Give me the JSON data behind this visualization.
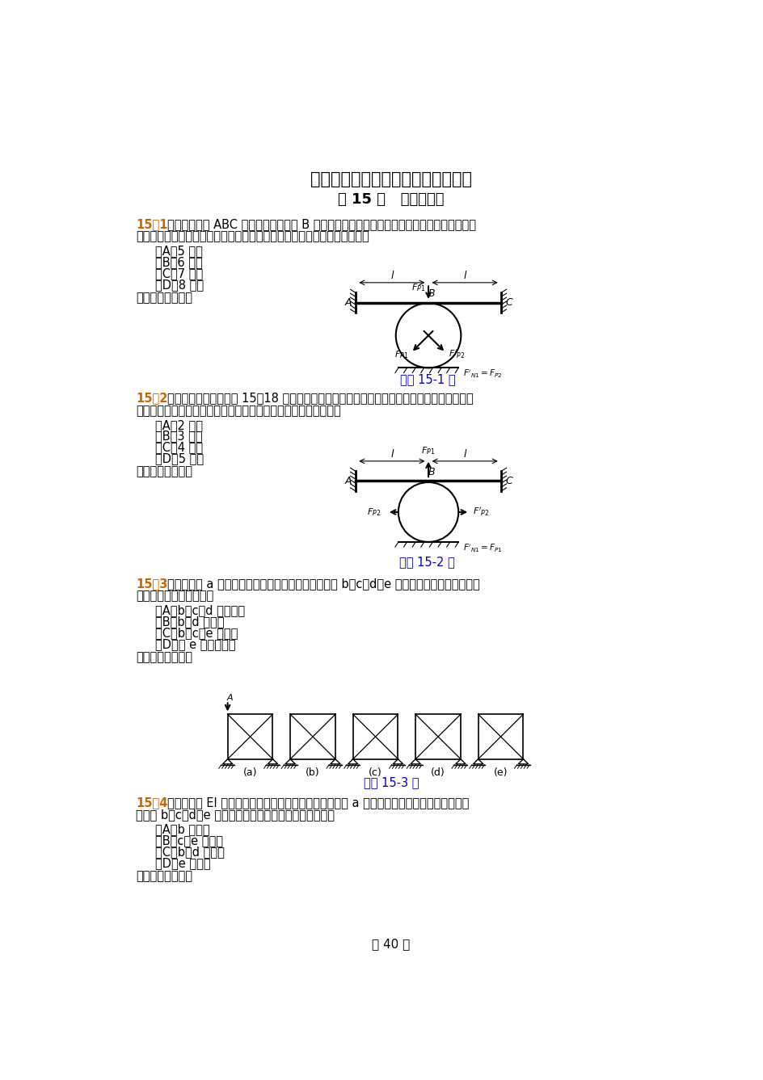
{
  "title": "工程力学（静力学与材料力学）习题",
  "subtitle": "第 15 章   静不定系统",
  "bg_color": "#ffffff",
  "text_color": "#000000",
  "accent_color": "#8B0000",
  "blue_color": "#0000CD",
  "q1_number": "15－1",
  "q1_text1": "图示结构中梁 ABC 的两端固定，在点 B 刚好与圆环接触，圆环下方为光滑刚性平面。在图示",
  "q1_text2": "载荷作用下，多余约束力的个数有如下四种答案，试判断哪一种是正确的。",
  "q1_a": "（A）5 个；",
  "q1_b": "（B）6 个；",
  "q1_c": "（C）7 个；",
  "q1_d": "（D）8 个。",
  "q1_ans": "正确答案是＿＿。",
  "fig1_label": "习题 15-1 图",
  "q2_number": "15－2",
  "q2_text1": "图示结构中，结构与题 15－18 相同，承受载荷情况略有不同。这时利用对称性或反对称性，",
  "q2_text2": "结构的未知约束力个数有如下四种答案，试判断哪一种是正确的。",
  "q2_a": "（A）2 个；",
  "q2_b": "（B）3 个；",
  "q2_c": "（C）4 个；",
  "q2_d": "（D）5 个。",
  "q2_ans": "正确答案是＿＿。",
  "fig2_label": "习题 15-2 图",
  "q3_number": "15－3",
  "q3_text1": "关于求解图 a 所示的超静定结构，解除多余约束有图 b、c、d、e 所示四种选择，试判断下列",
  "q3_text2": "结论中哪一种是正确的。",
  "q3_a": "（A）b、c、d 都正确；",
  "q3_b": "（B）b、d 正确；",
  "q3_c": "（C）b、c、e 正确；",
  "q3_d": "（D）仅 e 是正确的。",
  "q3_ans": "正确答案是＿＿。",
  "fig3_label": "习题 15-3 图",
  "q4_number": "15－4",
  "q4_text1": "由弯曲刚度 EI 相等的直杆形成的闭合框架承受载荷如图 a 所示。为利用对称性与反对称性，",
  "q4_text2": "采用图 b、c、d、e 中四种系统，试判断哪一种是正确的。",
  "q4_a": "（A）b 正确；",
  "q4_b": "（B）c、e 正确；",
  "q4_c": "（C）b、d 正确；",
  "q4_d": "（D）e 正确。",
  "q4_ans": "正确答案是＿＿。",
  "page_num": "－ 40 －"
}
